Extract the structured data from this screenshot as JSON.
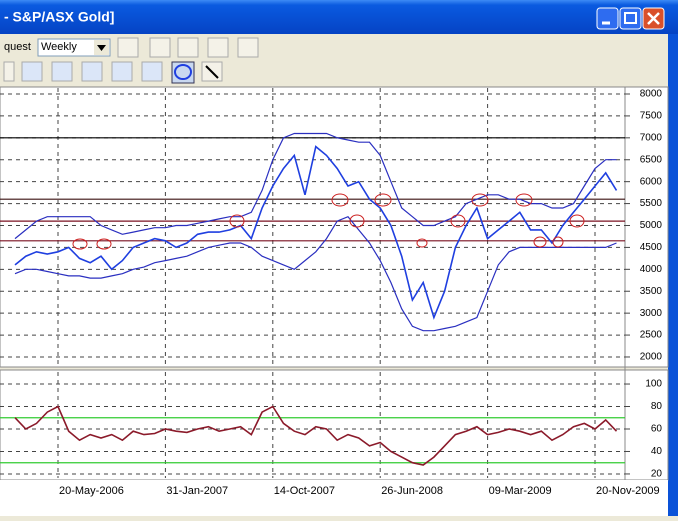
{
  "window": {
    "title": "- S&P/ASX Gold]"
  },
  "toolbar": {
    "source": "quest",
    "interval": "Weekly"
  },
  "chart_data": [
    {
      "type": "line",
      "ylim": [
        1817,
        8137
      ],
      "yticks": [
        2000,
        2500,
        3000,
        3500,
        4000,
        4500,
        5000,
        5500,
        6000,
        6500,
        7000,
        7500,
        8000
      ],
      "grid": true,
      "hlines": [
        {
          "value": 7000,
          "color": "#000000"
        },
        {
          "value": 5600,
          "color": "#3a1010"
        },
        {
          "value": 5100,
          "color": "#7a1020"
        },
        {
          "value": 4650,
          "color": "#7a1020"
        }
      ],
      "series": [
        {
          "color": "#1f3fe0",
          "values": [
            4100,
            4300,
            4400,
            4350,
            4400,
            4500,
            4250,
            4150,
            4300,
            4000,
            4200,
            4500,
            4600,
            4700,
            4650,
            4500,
            4600,
            4800,
            4850,
            4850,
            4900,
            5000,
            4700,
            5400,
            5900,
            6300,
            6600,
            5700,
            6800,
            6600,
            6300,
            5900,
            6000,
            5600,
            5400,
            5000,
            4300,
            3300,
            3700,
            2900,
            3500,
            4500,
            5000,
            5400,
            4700,
            4900,
            5100,
            5300,
            4900,
            4900,
            4600,
            5000,
            5300,
            5600,
            5900,
            6200,
            5800
          ]
        },
        {
          "color": "#2a2fc0",
          "values": [
            4700,
            4900,
            5100,
            5200,
            5200,
            5200,
            5200,
            5200,
            5000,
            4900,
            4800,
            4850,
            4900,
            4950,
            4950,
            5000,
            5000,
            5050,
            5100,
            5150,
            5200,
            5200,
            5300,
            5800,
            6500,
            7000,
            7100,
            7100,
            7100,
            7100,
            7000,
            6950,
            6900,
            6900,
            6600,
            6000,
            5400,
            5200,
            5000,
            5000,
            5100,
            5200,
            5500,
            5600,
            5700,
            5700,
            5600,
            5600,
            5500,
            5500,
            5400,
            5400,
            5500,
            5900,
            6300,
            6500,
            6500
          ]
        },
        {
          "color": "#2a2fc0",
          "values": [
            3900,
            4000,
            4000,
            3950,
            3900,
            3850,
            3850,
            3800,
            3800,
            3850,
            3900,
            4000,
            4050,
            4150,
            4200,
            4250,
            4300,
            4400,
            4500,
            4550,
            4600,
            4600,
            4500,
            4300,
            4200,
            4100,
            4000,
            4200,
            4400,
            4700,
            5100,
            5200,
            4900,
            4600,
            4200,
            3700,
            3100,
            2700,
            2600,
            2600,
            2650,
            2700,
            2800,
            2900,
            3500,
            4100,
            4400,
            4500,
            4500,
            4500,
            4500,
            4500,
            4500,
            4500,
            4500,
            4500,
            4600
          ]
        }
      ]
    },
    {
      "type": "line",
      "categories": [
        null,
        null,
        null,
        null,
        "20-May-2006",
        null,
        null,
        null,
        null,
        null,
        null,
        null,
        null,
        null,
        "31-Jan-2007",
        null,
        null,
        null,
        null,
        null,
        null,
        null,
        null,
        null,
        "14-Oct-2007",
        null,
        null,
        null,
        null,
        null,
        null,
        null,
        null,
        null,
        "26-Jun-2008",
        null,
        null,
        null,
        null,
        null,
        null,
        null,
        null,
        null,
        "09-Mar-2009",
        null,
        null,
        null,
        null,
        null,
        null,
        null,
        null,
        null,
        "20-Nov-2009",
        null,
        null
      ],
      "ylim": [
        16.4,
        110.7
      ],
      "yticks": [
        20,
        40,
        60,
        80,
        100
      ],
      "grid": true,
      "hlines": [
        {
          "value": 70,
          "color": "#33cc33"
        },
        {
          "value": 30,
          "color": "#33cc33"
        }
      ],
      "series": [
        {
          "color": "#8b1a2a",
          "values": [
            70,
            60,
            65,
            75,
            80,
            58,
            50,
            55,
            52,
            55,
            50,
            58,
            55,
            56,
            60,
            58,
            57,
            60,
            62,
            58,
            60,
            62,
            55,
            75,
            80,
            65,
            58,
            55,
            62,
            60,
            50,
            55,
            52,
            45,
            48,
            40,
            35,
            30,
            28,
            35,
            45,
            55,
            58,
            62,
            55,
            57,
            60,
            58,
            55,
            58,
            50,
            55,
            62,
            65,
            60,
            68,
            58
          ]
        }
      ]
    }
  ]
}
